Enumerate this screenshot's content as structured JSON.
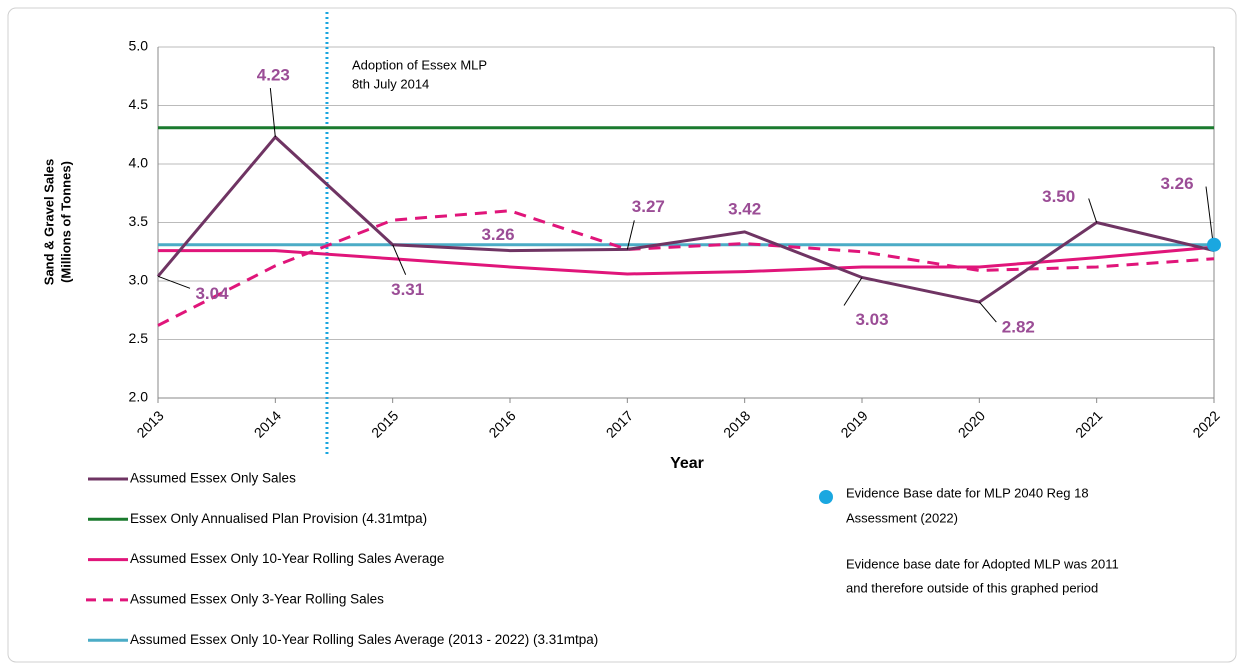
{
  "chart_data": {
    "type": "line",
    "x": [
      2013,
      2014,
      2015,
      2016,
      2017,
      2018,
      2019,
      2020,
      2021,
      2022
    ],
    "xlim": [
      2013,
      2022
    ],
    "xticks": [
      2013,
      2014,
      2015,
      2016,
      2017,
      2018,
      2019,
      2020,
      2021,
      2022
    ],
    "ylim": [
      2,
      5
    ],
    "yticks": [
      {
        "value": 2,
        "label": "2.0"
      },
      {
        "value": 2.5,
        "label": "2.5"
      },
      {
        "value": 3,
        "label": "3.0"
      },
      {
        "value": 3.5,
        "label": "3.5"
      },
      {
        "value": 4,
        "label": "4.0"
      },
      {
        "value": 4.5,
        "label": "4.5"
      },
      {
        "value": 5,
        "label": "5.0"
      }
    ],
    "grid": true,
    "x_label": "Year",
    "y_label": [
      "Sand & Gravel Sales",
      "(Millions of Tonnes)"
    ],
    "series": [
      {
        "name": "Assumed Essex Only Sales",
        "color": "#6f3463",
        "dash": false,
        "values": [
          3.04,
          4.23,
          3.31,
          3.26,
          3.27,
          3.42,
          3.03,
          2.82,
          3.5,
          3.26
        ],
        "value_labels": [
          "3.04",
          "4.23",
          "3.31",
          "3.26",
          "3.27",
          "3.42",
          "3.03",
          "2.82",
          "3.50",
          "3.26"
        ]
      },
      {
        "name": "Essex Only Annualised Plan Provision (4.31mtpa)",
        "color": "#1a7a2e",
        "dash": false,
        "values": [
          4.31,
          4.31,
          4.31,
          4.31,
          4.31,
          4.31,
          4.31,
          4.31,
          4.31,
          4.31
        ]
      },
      {
        "name": "Assumed Essex Only 10-Year Rolling Sales Average",
        "color": "#e0157a",
        "dash": false,
        "values": [
          3.26,
          3.26,
          3.19,
          3.12,
          3.06,
          3.08,
          3.12,
          3.12,
          3.2,
          3.29
        ]
      },
      {
        "name": "Assumed Essex Only 3-Year Rolling Sales",
        "color": "#e0157a",
        "dash": true,
        "values": [
          2.62,
          3.13,
          3.52,
          3.6,
          3.27,
          3.32,
          3.25,
          3.09,
          3.12,
          3.19
        ]
      },
      {
        "name": "Assumed Essex Only 10-Year Rolling Sales Average (2013 - 2022) (3.31mtpa)",
        "color": "#4bacc6",
        "dash": false,
        "values": [
          3.31,
          3.31,
          3.31,
          3.31,
          3.31,
          3.31,
          3.31,
          3.31,
          3.31,
          3.31
        ]
      }
    ],
    "annotation": {
      "x": 2014.44,
      "color": "#1aa7e0",
      "text": [
        "Adoption of Essex MLP",
        "8th July 2014"
      ]
    },
    "marker": {
      "x": 2022,
      "y": 3.31,
      "color": "#1aa7e0",
      "text": [
        "Evidence Base date for MLP 2040 Reg 18",
        "Assessment (2022)"
      ]
    },
    "note": [
      "Evidence base date for Adopted MLP was 2011",
      "and therefore outside of this graphed period"
    ]
  }
}
